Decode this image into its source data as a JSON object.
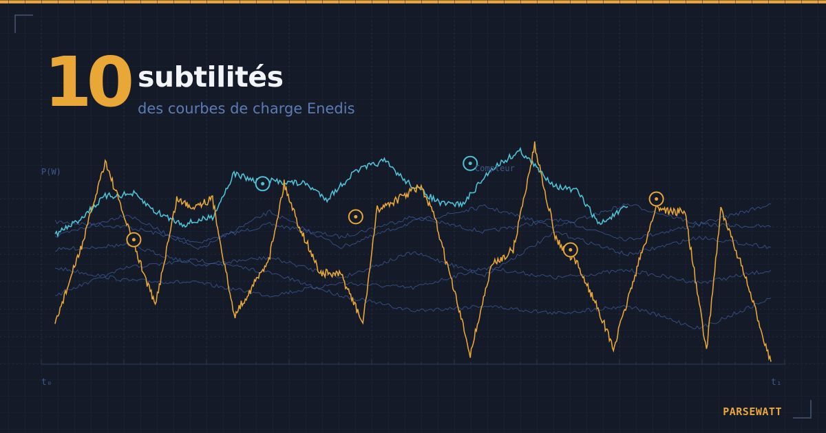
{
  "header": {
    "number": "10",
    "title": "subtilités",
    "subtitle": "des courbes de charge Enedis"
  },
  "brand": "PARSEWATT",
  "colors": {
    "background": "#141a28",
    "accent": "#e8a737",
    "cyan": "#4ec3d6",
    "blue_lines": "#3f5d9c",
    "grid": "#1f2a3f",
    "dim_text": "#3d5a8a"
  },
  "chart_data": {
    "type": "line",
    "ylabel": "P(W)",
    "x_tick_labels": [
      "t₀",
      "t₁"
    ],
    "annotation": "Compteur",
    "x_range": [
      0,
      100
    ],
    "y_range": [
      0,
      100
    ],
    "grid": true,
    "series": [
      {
        "color": "#e8a737",
        "x": [
          0,
          4,
          7,
          11,
          14,
          17,
          19,
          22,
          25,
          29,
          30,
          32,
          34,
          37,
          40,
          43,
          45,
          48,
          51,
          53,
          56,
          58,
          61,
          64,
          67,
          70,
          73,
          76,
          78,
          81,
          84,
          86,
          88,
          91,
          93,
          96,
          100
        ],
        "values": [
          16,
          49,
          80,
          47,
          23,
          65,
          62,
          65,
          19,
          37,
          43,
          71,
          55,
          36,
          35,
          16,
          61,
          65,
          70,
          58,
          26,
          4,
          39,
          45,
          86,
          49,
          39,
          21,
          6,
          35,
          62,
          60,
          60,
          5,
          61,
          38,
          1
        ]
      },
      {
        "color": "#4ec3d6",
        "x": [
          0,
          3,
          7,
          11,
          14,
          18,
          22,
          25,
          28,
          31,
          35,
          38,
          42,
          46,
          49,
          54,
          57,
          61,
          65,
          68,
          70,
          73,
          76,
          80
        ],
        "values": [
          51,
          56,
          66,
          67,
          60,
          55,
          58,
          75,
          72,
          72,
          71,
          65,
          76,
          80,
          72,
          63,
          63,
          77,
          84,
          75,
          70,
          68,
          55,
          62
        ]
      },
      {
        "color": "#3f5d9c",
        "x": [
          0,
          10,
          20,
          30,
          40,
          50,
          60,
          70,
          80,
          90,
          100
        ],
        "values": [
          56,
          54,
          48,
          55,
          50,
          58,
          52,
          57,
          49,
          55,
          54
        ]
      },
      {
        "color": "#3f5d9c",
        "x": [
          0,
          10,
          20,
          30,
          40,
          50,
          60,
          70,
          80,
          90,
          100
        ],
        "values": [
          38,
          33,
          32,
          27,
          32,
          30,
          38,
          34,
          37,
          32,
          37
        ]
      },
      {
        "color": "#3f5d9c",
        "x": [
          0,
          10,
          20,
          30,
          40,
          50,
          60,
          70,
          80,
          90,
          100
        ],
        "values": [
          50,
          59,
          45,
          60,
          46,
          56,
          62,
          54,
          63,
          55,
          63
        ]
      },
      {
        "color": "#3f5d9c",
        "x": [
          0,
          10,
          20,
          30,
          40,
          50,
          60,
          70,
          80,
          90,
          100
        ],
        "values": [
          45,
          47,
          39,
          42,
          34,
          44,
          35,
          52,
          43,
          50,
          46
        ]
      },
      {
        "color": "#3f5d9c",
        "x": [
          0,
          10,
          20,
          30,
          40,
          50,
          60,
          70,
          80,
          90,
          100
        ],
        "values": [
          27,
          38,
          41,
          36,
          27,
          21,
          23,
          20,
          23,
          14,
          26
        ]
      }
    ],
    "markers": [
      {
        "x": 11,
        "y": 49,
        "color": "#e8a737"
      },
      {
        "x": 29,
        "y": 71,
        "color": "#4ec3d6"
      },
      {
        "x": 42,
        "y": 58,
        "color": "#e8a737"
      },
      {
        "x": 58,
        "y": 79,
        "color": "#4ec3d6"
      },
      {
        "x": 72,
        "y": 45,
        "color": "#e8a737"
      },
      {
        "x": 84,
        "y": 65,
        "color": "#e8a737"
      }
    ]
  }
}
